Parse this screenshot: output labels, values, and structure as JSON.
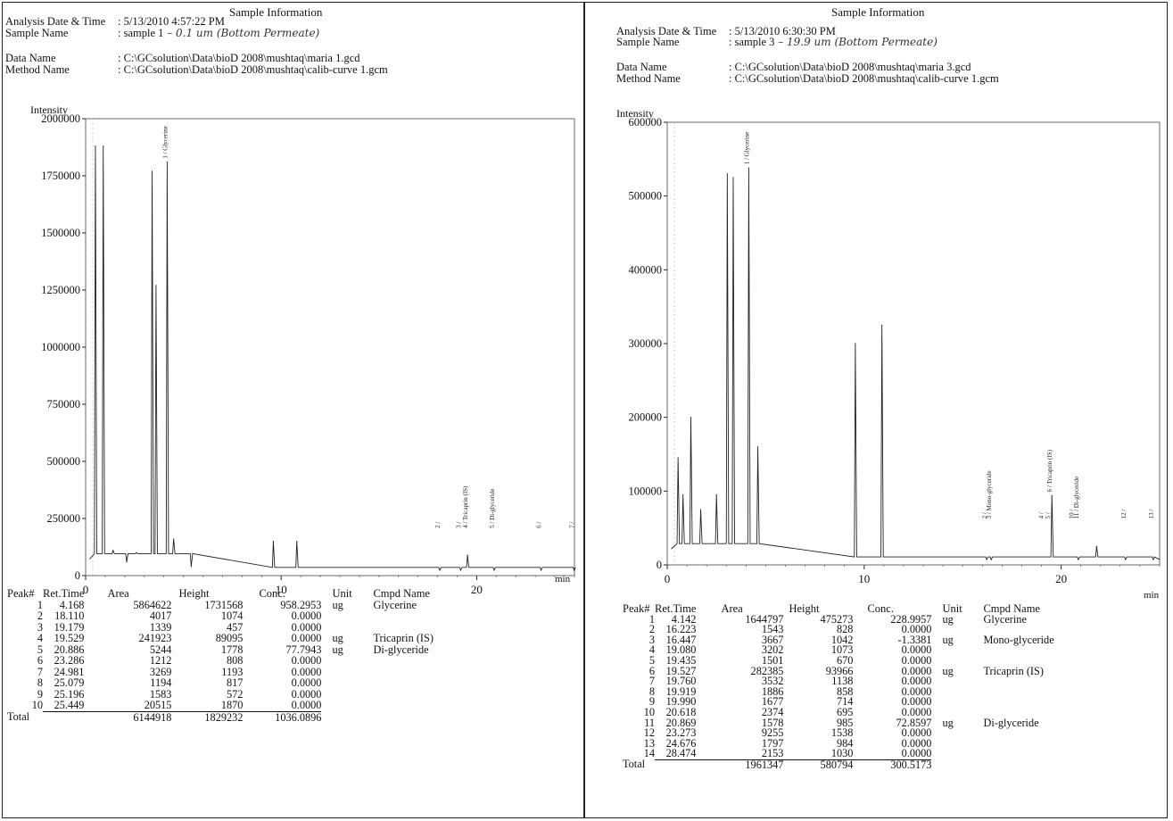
{
  "section_title": "Sample Information",
  "header_labels": {
    "date": "Analysis Date & Time",
    "sample": "Sample Name",
    "data": "Data Name",
    "method": "Method Name"
  },
  "table_headers": [
    "Peak#",
    "Ret.Time",
    "Area",
    "Height",
    "Conc.",
    "Unit",
    "Cmpd Name"
  ],
  "total_label": "Total",
  "ylabel": "Intensity",
  "xunit": "min",
  "panels": [
    {
      "date": ": 5/13/2010 4:57:22 PM",
      "sample_typed": ": sample 1",
      "sample_hand": " – 0.1 um (Bottom Permeate)",
      "data_name": ": C:\\GCsolution\\Data\\bioD 2008\\mushtaq\\maria 1.gcd",
      "method_name": ": C:\\GCsolution\\Data\\bioD 2008\\mushtaq\\calib-curve 1.gcm",
      "peaks": [
        {
          "n": "1",
          "rt": "4.168",
          "area": "5864622",
          "height": "1731568",
          "conc": "958.2953",
          "unit": "ug",
          "name": "Glycerine"
        },
        {
          "n": "2",
          "rt": "18.110",
          "area": "4017",
          "height": "1074",
          "conc": "0.0000",
          "unit": "",
          "name": ""
        },
        {
          "n": "3",
          "rt": "19.179",
          "area": "1339",
          "height": "457",
          "conc": "0.0000",
          "unit": "",
          "name": ""
        },
        {
          "n": "4",
          "rt": "19.529",
          "area": "241923",
          "height": "89095",
          "conc": "0.0000",
          "unit": "ug",
          "name": "Tricaprin (IS)"
        },
        {
          "n": "5",
          "rt": "20.886",
          "area": "5244",
          "height": "1778",
          "conc": "77.7943",
          "unit": "ug",
          "name": "Di-glyceride"
        },
        {
          "n": "6",
          "rt": "23.286",
          "area": "1212",
          "height": "808",
          "conc": "0.0000",
          "unit": "",
          "name": ""
        },
        {
          "n": "7",
          "rt": "24.981",
          "area": "3269",
          "height": "1193",
          "conc": "0.0000",
          "unit": "",
          "name": ""
        },
        {
          "n": "8",
          "rt": "25.079",
          "area": "1194",
          "height": "817",
          "conc": "0.0000",
          "unit": "",
          "name": ""
        },
        {
          "n": "9",
          "rt": "25.196",
          "area": "1583",
          "height": "572",
          "conc": "0.0000",
          "unit": "",
          "name": ""
        },
        {
          "n": "10",
          "rt": "25.449",
          "area": "20515",
          "height": "1870",
          "conc": "0.0000",
          "unit": "",
          "name": ""
        }
      ],
      "totals": {
        "area": "6144918",
        "height": "1829232",
        "conc": "1036.0896"
      }
    },
    {
      "date": ": 5/13/2010 6:30:30 PM",
      "sample_typed": ": sample 3",
      "sample_hand": " – 19.9 um (Bottom Permeate)",
      "data_name": ": C:\\GCsolution\\Data\\bioD 2008\\mushtaq\\maria 3.gcd",
      "method_name": ": C:\\GCsolution\\Data\\bioD 2008\\mushtaq\\calib-curve 1.gcm",
      "peaks": [
        {
          "n": "1",
          "rt": "4.142",
          "area": "1644797",
          "height": "475273",
          "conc": "228.9957",
          "unit": "ug",
          "name": "Glycerine"
        },
        {
          "n": "2",
          "rt": "16.223",
          "area": "1543",
          "height": "828",
          "conc": "0.0000",
          "unit": "",
          "name": ""
        },
        {
          "n": "3",
          "rt": "16.447",
          "area": "3667",
          "height": "1042",
          "conc": "-1.3381",
          "unit": "ug",
          "name": "Mono-glyceride"
        },
        {
          "n": "4",
          "rt": "19.080",
          "area": "3202",
          "height": "1073",
          "conc": "0.0000",
          "unit": "",
          "name": ""
        },
        {
          "n": "5",
          "rt": "19.435",
          "area": "1501",
          "height": "670",
          "conc": "0.0000",
          "unit": "",
          "name": ""
        },
        {
          "n": "6",
          "rt": "19.527",
          "area": "282385",
          "height": "93966",
          "conc": "0.0000",
          "unit": "ug",
          "name": "Tricaprin (IS)"
        },
        {
          "n": "7",
          "rt": "19.760",
          "area": "3532",
          "height": "1138",
          "conc": "0.0000",
          "unit": "",
          "name": ""
        },
        {
          "n": "8",
          "rt": "19.919",
          "area": "1886",
          "height": "858",
          "conc": "0.0000",
          "unit": "",
          "name": ""
        },
        {
          "n": "9",
          "rt": "19.990",
          "area": "1677",
          "height": "714",
          "conc": "0.0000",
          "unit": "",
          "name": ""
        },
        {
          "n": "10",
          "rt": "20.618",
          "area": "2374",
          "height": "695",
          "conc": "0.0000",
          "unit": "",
          "name": ""
        },
        {
          "n": "11",
          "rt": "20.869",
          "area": "1578",
          "height": "985",
          "conc": "72.8597",
          "unit": "ug",
          "name": "Di-glyceride"
        },
        {
          "n": "12",
          "rt": "23.273",
          "area": "9255",
          "height": "1538",
          "conc": "0.0000",
          "unit": "",
          "name": ""
        },
        {
          "n": "13",
          "rt": "24.676",
          "area": "1797",
          "height": "984",
          "conc": "0.0000",
          "unit": "",
          "name": ""
        },
        {
          "n": "14",
          "rt": "28.474",
          "area": "2153",
          "height": "1030",
          "conc": "0.0000",
          "unit": "",
          "name": ""
        }
      ],
      "totals": {
        "area": "1961347",
        "height": "580794",
        "conc": "300.5173"
      }
    }
  ],
  "chart_data": [
    {
      "type": "line",
      "ylabel": "Intensity",
      "xunit": "min",
      "xlim": [
        0,
        25
      ],
      "ylim": [
        0,
        2000000
      ],
      "yticks": [
        "2000000",
        "1750000",
        "1500000",
        "1250000",
        "1000000",
        "750000",
        "500000",
        "250000",
        "0"
      ],
      "xticks": [
        "0",
        "10",
        "20"
      ],
      "peaks": [
        {
          "x": 0.5,
          "y": 1880000
        },
        {
          "x": 0.9,
          "y": 1880000
        },
        {
          "x": 1.4,
          "y": 110000
        },
        {
          "x": 2.1,
          "y": 60000
        },
        {
          "x": 2.6,
          "y": 100000
        },
        {
          "x": 3.4,
          "y": 1770000
        },
        {
          "x": 3.6,
          "y": 1270000
        },
        {
          "x": 4.17,
          "y": 1810000
        },
        {
          "x": 4.5,
          "y": 160000
        },
        {
          "x": 5.4,
          "y": 40000
        },
        {
          "x": 9.6,
          "y": 150000
        },
        {
          "x": 10.8,
          "y": 150000
        },
        {
          "x": 18.11,
          "y": 1074
        },
        {
          "x": 19.18,
          "y": 457
        },
        {
          "x": 19.53,
          "y": 89095
        },
        {
          "x": 20.89,
          "y": 1778
        },
        {
          "x": 23.29,
          "y": 808
        },
        {
          "x": 24.98,
          "y": 1193
        }
      ],
      "peak_labels": [
        {
          "x": 4.17,
          "text": "1 / Glycerine"
        },
        {
          "x": 18.11,
          "text": "2 /"
        },
        {
          "x": 19.18,
          "text": "3 /"
        },
        {
          "x": 19.53,
          "text": "4 / Tricaprin (IS)"
        },
        {
          "x": 20.89,
          "text": "5 / Di-glyceride"
        },
        {
          "x": 23.29,
          "text": "6 /"
        },
        {
          "x": 24.98,
          "text": "7 /"
        }
      ]
    },
    {
      "type": "line",
      "ylabel": "Intensity",
      "xunit": "min",
      "xlim": [
        0,
        25
      ],
      "ylim": [
        0,
        600000
      ],
      "yticks": [
        "600000",
        "500000",
        "400000",
        "300000",
        "200000",
        "100000",
        "0"
      ],
      "xticks": [
        "0",
        "10",
        "20"
      ],
      "peaks": [
        {
          "x": 0.55,
          "y": 145000
        },
        {
          "x": 0.8,
          "y": 95000
        },
        {
          "x": 1.2,
          "y": 200000
        },
        {
          "x": 1.7,
          "y": 75000
        },
        {
          "x": 2.5,
          "y": 95000
        },
        {
          "x": 3.05,
          "y": 530000
        },
        {
          "x": 3.35,
          "y": 525000
        },
        {
          "x": 4.14,
          "y": 538000
        },
        {
          "x": 4.6,
          "y": 160000
        },
        {
          "x": 9.55,
          "y": 300000
        },
        {
          "x": 10.9,
          "y": 325000
        },
        {
          "x": 16.22,
          "y": 828
        },
        {
          "x": 16.45,
          "y": 1042
        },
        {
          "x": 19.53,
          "y": 93966
        },
        {
          "x": 20.87,
          "y": 985
        },
        {
          "x": 21.8,
          "y": 25000
        },
        {
          "x": 23.27,
          "y": 1538
        },
        {
          "x": 24.68,
          "y": 984
        }
      ],
      "peak_labels": [
        {
          "x": 4.14,
          "text": "1 / Glycerine"
        },
        {
          "x": 16.22,
          "text": "2 /"
        },
        {
          "x": 16.45,
          "text": "3 / Mono-glyceride"
        },
        {
          "x": 19.08,
          "text": "4 /"
        },
        {
          "x": 19.43,
          "text": "5 /"
        },
        {
          "x": 19.53,
          "text": "6 / Tricaprin (IS)"
        },
        {
          "x": 20.62,
          "text": "10 /"
        },
        {
          "x": 20.87,
          "text": "11 / Di-glyceride"
        },
        {
          "x": 23.27,
          "text": "12 /"
        },
        {
          "x": 24.68,
          "text": "13 /"
        }
      ]
    }
  ]
}
